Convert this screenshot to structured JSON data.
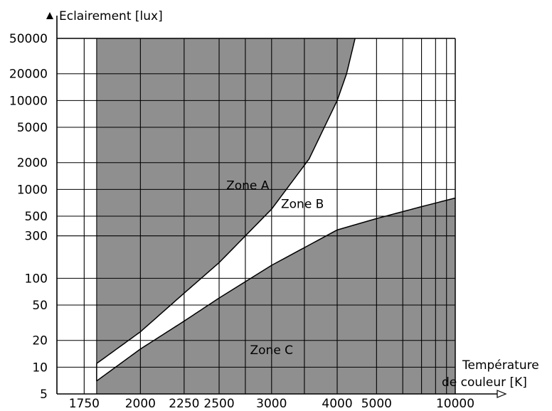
{
  "chart_data": {
    "type": "area",
    "title": "",
    "xlabel_lines": [
      "Température",
      "de couleur [K]"
    ],
    "ylabel": "Eclairement [lux]",
    "x_scale": "reciprocal",
    "y_scale": "log",
    "xlim": [
      1650,
      10000
    ],
    "ylim": [
      5,
      50000
    ],
    "grid": true,
    "x_ticks": [
      {
        "value": 1750,
        "label": "1750"
      },
      {
        "value": 2000,
        "label": "2000"
      },
      {
        "value": 2250,
        "label": "2250"
      },
      {
        "value": 2500,
        "label": "2500"
      },
      {
        "value": 3000,
        "label": "3000"
      },
      {
        "value": 4000,
        "label": "4000"
      },
      {
        "value": 5000,
        "label": "5000"
      },
      {
        "value": 10000,
        "label": "10000"
      }
    ],
    "x_minor_grid": [
      6000,
      7000,
      8000,
      9000
    ],
    "y_ticks": [
      {
        "value": 5,
        "label": "5"
      },
      {
        "value": 10,
        "label": "10"
      },
      {
        "value": 20,
        "label": "20"
      },
      {
        "value": 50,
        "label": "50"
      },
      {
        "value": 100,
        "label": "100"
      },
      {
        "value": 300,
        "label": "300"
      },
      {
        "value": 500,
        "label": "500"
      },
      {
        "value": 1000,
        "label": "1000"
      },
      {
        "value": 2000,
        "label": "2000"
      },
      {
        "value": 5000,
        "label": "5000"
      },
      {
        "value": 10000,
        "label": "10000"
      },
      {
        "value": 20000,
        "label": "20000"
      },
      {
        "value": 50000,
        "label": "50000"
      }
    ],
    "zone_colors": {
      "A": "#8f8f8f",
      "B": "#ffffff",
      "C": "#8f8f8f"
    },
    "boundary_start_temperature": 1800,
    "upper_boundary": {
      "name": "A/B",
      "points": [
        {
          "x": 1800,
          "y": 11
        },
        {
          "x": 2000,
          "y": 25
        },
        {
          "x": 2250,
          "y": 68
        },
        {
          "x": 2500,
          "y": 150
        },
        {
          "x": 3000,
          "y": 600
        },
        {
          "x": 3500,
          "y": 2200
        },
        {
          "x": 4000,
          "y": 10000
        },
        {
          "x": 4200,
          "y": 20000
        },
        {
          "x": 4400,
          "y": 50000
        }
      ]
    },
    "lower_boundary": {
      "name": "B/C",
      "points": [
        {
          "x": 1800,
          "y": 7
        },
        {
          "x": 2000,
          "y": 16
        },
        {
          "x": 2250,
          "y": 33
        },
        {
          "x": 2500,
          "y": 60
        },
        {
          "x": 3000,
          "y": 140
        },
        {
          "x": 4000,
          "y": 350
        },
        {
          "x": 5000,
          "y": 470
        },
        {
          "x": 7000,
          "y": 640
        },
        {
          "x": 10000,
          "y": 800
        }
      ]
    },
    "annotations": [
      {
        "id": "A",
        "text": "Zone A",
        "x": 2750,
        "y": 1000
      },
      {
        "id": "B",
        "text": "Zone B",
        "x": 3400,
        "y": 620
      },
      {
        "id": "C",
        "text": "Zone C",
        "x": 3000,
        "y": 14
      }
    ]
  }
}
